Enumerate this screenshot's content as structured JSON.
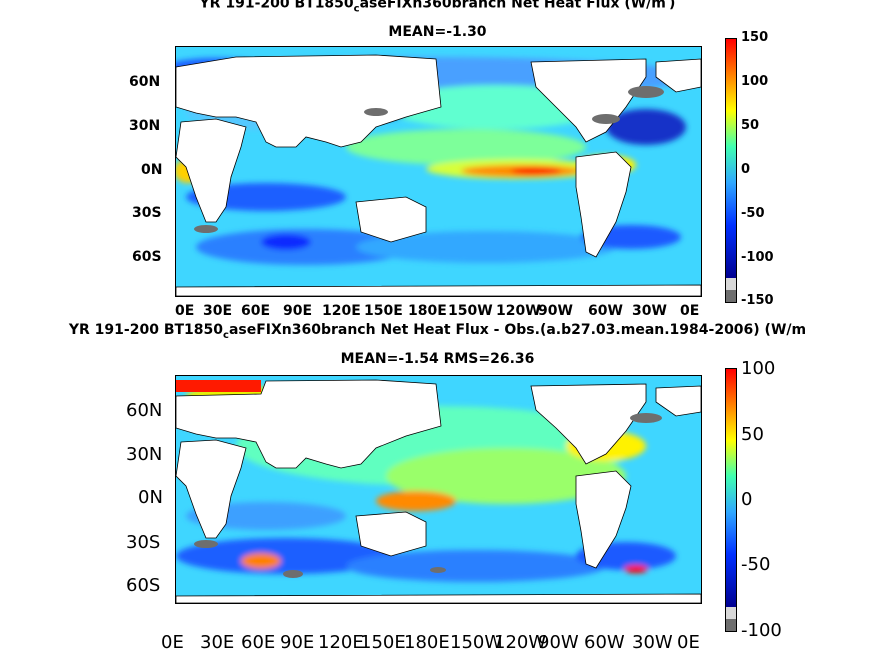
{
  "chart_data": [
    {
      "type": "heatmap",
      "title_line1_pre": "YR 191-200 BT1850",
      "title_line1_sub": "c",
      "title_line1_post": "aseFIXn360branch  Net Heat Flux (W/m",
      "title_line1_end": ")",
      "title_line2": "MEAN=-1.30",
      "y_tick_labels": [
        "60N",
        "30N",
        "0N",
        "30S",
        "60S"
      ],
      "x_tick_labels": [
        "0E",
        "30E",
        "60E",
        "90E",
        "120E",
        "150E",
        "180E",
        "150W",
        "120W",
        "90W",
        "60W",
        "30W",
        "0E"
      ],
      "colorbar_tick_labels": [
        "150",
        "100",
        "50",
        "0",
        "-50",
        "-100",
        "-150"
      ],
      "colorbar_range": [
        -150,
        150
      ],
      "ocean_base_color": "#3fd6ff",
      "land_color": "#ffffff",
      "sea_ice_color": "#6e6e6e"
    },
    {
      "type": "heatmap",
      "title_line1_pre": "YR 191-200 BT1850",
      "title_line1_sub": "c",
      "title_line1_post": "aseFIXn360branch  Net Heat Flux - Obs.(a.b27.03.mean.1984-2006) (W/m",
      "title_line2": "MEAN=-1.54 RMS=26.36",
      "y_tick_labels": [
        "60N",
        "30N",
        "0N",
        "30S",
        "60S"
      ],
      "x_tick_labels": [
        "0E",
        "30E",
        "60E",
        "90E",
        "120E",
        "150E",
        "180E",
        "150W",
        "120W",
        "90W",
        "60W",
        "30W",
        "0E"
      ],
      "colorbar_tick_labels": [
        "100",
        "50",
        "0",
        "-50",
        "-100"
      ],
      "colorbar_range": [
        -100,
        100
      ],
      "ocean_base_color": "#3fd6ff",
      "land_color": "#ffffff",
      "sea_ice_color": "#6e6e6e"
    }
  ]
}
